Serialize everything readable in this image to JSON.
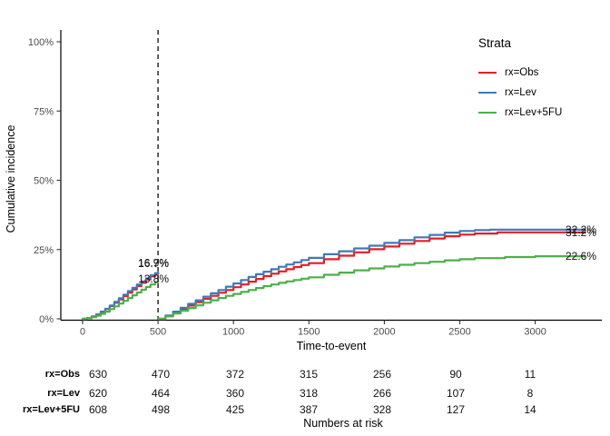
{
  "chart": {
    "y_axis": {
      "title": "Cumulative incidence",
      "tick_labels": [
        "0%",
        "25%",
        "50%",
        "75%",
        "100%"
      ],
      "tick_values": [
        0,
        25,
        50,
        75,
        100
      ]
    },
    "x_axis": {
      "title": "Time-to-event",
      "tick_labels": [
        "0",
        "500",
        "1000",
        "1500",
        "2000",
        "2500",
        "3000"
      ],
      "tick_values": [
        0,
        500,
        1000,
        1500,
        2000,
        2500,
        3000
      ]
    },
    "legend": {
      "title": "Strata"
    }
  },
  "chart_data": {
    "type": "line",
    "title": "",
    "xlabel": "Time-to-event",
    "ylabel": "Cumulative incidence",
    "xlim": [
      0,
      3450
    ],
    "ylim": [
      0,
      100
    ],
    "grid": false,
    "legend_position": "right",
    "landmark_time": 500,
    "series": [
      {
        "name": "rx=Obs",
        "color": "#E41E24",
        "segments": [
          [
            [
              0,
              0
            ],
            [
              30,
              0.3
            ],
            [
              60,
              0.9
            ],
            [
              90,
              1.6
            ],
            [
              120,
              2.6
            ],
            [
              150,
              3.5
            ],
            [
              180,
              4.6
            ],
            [
              210,
              5.8
            ],
            [
              240,
              7.0
            ],
            [
              270,
              8.2
            ],
            [
              300,
              9.4
            ],
            [
              330,
              10.6
            ],
            [
              360,
              11.8
            ],
            [
              390,
              13.0
            ],
            [
              420,
              14.2
            ],
            [
              450,
              15.3
            ],
            [
              480,
              16.2
            ],
            [
              500,
              16.7
            ]
          ],
          [
            [
              500,
              0
            ],
            [
              550,
              1.0
            ],
            [
              600,
              2.3
            ],
            [
              650,
              3.6
            ],
            [
              700,
              4.8
            ],
            [
              750,
              6.0
            ],
            [
              800,
              7.2
            ],
            [
              850,
              8.3
            ],
            [
              900,
              9.4
            ],
            [
              950,
              10.4
            ],
            [
              1000,
              11.4
            ],
            [
              1050,
              12.4
            ],
            [
              1100,
              13.4
            ],
            [
              1150,
              14.4
            ],
            [
              1200,
              15.4
            ],
            [
              1250,
              16.3
            ],
            [
              1300,
              17.1
            ],
            [
              1350,
              17.9
            ],
            [
              1400,
              18.7
            ],
            [
              1450,
              19.4
            ],
            [
              1500,
              20.1
            ],
            [
              1600,
              21.5
            ],
            [
              1700,
              22.8
            ],
            [
              1800,
              24.0
            ],
            [
              1900,
              25.1
            ],
            [
              2000,
              26.1
            ],
            [
              2100,
              27.1
            ],
            [
              2200,
              28.1
            ],
            [
              2300,
              29.0
            ],
            [
              2400,
              29.8
            ],
            [
              2500,
              30.4
            ],
            [
              2600,
              30.8
            ],
            [
              2750,
              31.2
            ],
            [
              3329,
              31.2
            ]
          ]
        ]
      },
      {
        "name": "rx=Lev",
        "color": "#4179B5",
        "segments": [
          [
            [
              0,
              0
            ],
            [
              30,
              0.2
            ],
            [
              60,
              0.8
            ],
            [
              90,
              1.5
            ],
            [
              120,
              2.5
            ],
            [
              150,
              3.6
            ],
            [
              180,
              4.8
            ],
            [
              210,
              6.1
            ],
            [
              240,
              7.4
            ],
            [
              270,
              8.7
            ],
            [
              300,
              10.0
            ],
            [
              330,
              11.2
            ],
            [
              360,
              12.4
            ],
            [
              390,
              13.5
            ],
            [
              420,
              14.6
            ],
            [
              450,
              15.7
            ],
            [
              480,
              16.5
            ],
            [
              500,
              16.9
            ]
          ],
          [
            [
              500,
              0
            ],
            [
              550,
              1.2
            ],
            [
              600,
              2.6
            ],
            [
              650,
              4.0
            ],
            [
              700,
              5.4
            ],
            [
              750,
              6.7
            ],
            [
              800,
              8.0
            ],
            [
              850,
              9.2
            ],
            [
              900,
              10.4
            ],
            [
              950,
              11.6
            ],
            [
              1000,
              12.8
            ],
            [
              1050,
              14.0
            ],
            [
              1100,
              15.1
            ],
            [
              1150,
              16.1
            ],
            [
              1200,
              17.0
            ],
            [
              1250,
              17.9
            ],
            [
              1300,
              18.8
            ],
            [
              1350,
              19.6
            ],
            [
              1400,
              20.4
            ],
            [
              1450,
              21.2
            ],
            [
              1500,
              22.0
            ],
            [
              1600,
              23.3
            ],
            [
              1700,
              24.4
            ],
            [
              1800,
              25.4
            ],
            [
              1900,
              26.4
            ],
            [
              2000,
              27.4
            ],
            [
              2100,
              28.4
            ],
            [
              2200,
              29.4
            ],
            [
              2300,
              30.3
            ],
            [
              2400,
              31.1
            ],
            [
              2500,
              31.7
            ],
            [
              2600,
              32.0
            ],
            [
              2700,
              32.2
            ],
            [
              3329,
              32.2
            ]
          ]
        ]
      },
      {
        "name": "rx=Lev+5FU",
        "color": "#4DAF4A",
        "segments": [
          [
            [
              0,
              0
            ],
            [
              30,
              0.2
            ],
            [
              60,
              0.6
            ],
            [
              90,
              1.1
            ],
            [
              120,
              1.8
            ],
            [
              150,
              2.6
            ],
            [
              180,
              3.5
            ],
            [
              210,
              4.5
            ],
            [
              240,
              5.5
            ],
            [
              270,
              6.5
            ],
            [
              300,
              7.5
            ],
            [
              330,
              8.5
            ],
            [
              360,
              9.5
            ],
            [
              390,
              10.5
            ],
            [
              420,
              11.5
            ],
            [
              450,
              12.4
            ],
            [
              480,
              13.2
            ],
            [
              500,
              13.8
            ]
          ],
          [
            [
              500,
              0
            ],
            [
              550,
              0.9
            ],
            [
              600,
              1.9
            ],
            [
              650,
              2.9
            ],
            [
              700,
              3.9
            ],
            [
              750,
              4.9
            ],
            [
              800,
              5.8
            ],
            [
              850,
              6.7
            ],
            [
              900,
              7.5
            ],
            [
              950,
              8.3
            ],
            [
              1000,
              9.0
            ],
            [
              1050,
              9.7
            ],
            [
              1100,
              10.4
            ],
            [
              1150,
              11.1
            ],
            [
              1200,
              11.8
            ],
            [
              1250,
              12.4
            ],
            [
              1300,
              13.0
            ],
            [
              1350,
              13.5
            ],
            [
              1400,
              14.0
            ],
            [
              1450,
              14.5
            ],
            [
              1500,
              15.0
            ],
            [
              1600,
              15.9
            ],
            [
              1700,
              16.7
            ],
            [
              1800,
              17.5
            ],
            [
              1900,
              18.2
            ],
            [
              2000,
              18.9
            ],
            [
              2100,
              19.5
            ],
            [
              2200,
              20.1
            ],
            [
              2300,
              20.6
            ],
            [
              2400,
              21.1
            ],
            [
              2500,
              21.5
            ],
            [
              2600,
              21.9
            ],
            [
              2800,
              22.3
            ],
            [
              3000,
              22.6
            ],
            [
              3329,
              22.6
            ]
          ]
        ]
      }
    ],
    "annotations": [
      {
        "text": "16.9%",
        "series": "rx=Lev",
        "time": 500,
        "value": 16.9,
        "side": "landmark",
        "placement": "above"
      },
      {
        "text": "16.7%",
        "series": "rx=Obs",
        "time": 500,
        "value": 16.7,
        "side": "landmark",
        "placement": "above"
      },
      {
        "text": "13.8%",
        "series": "rx=Lev+5FU",
        "time": 500,
        "value": 13.8,
        "side": "landmark",
        "placement": "on"
      },
      {
        "text": "32.2%",
        "series": "rx=Lev",
        "time": 3329,
        "value": 32.2,
        "side": "end",
        "placement": "on"
      },
      {
        "text": "31.2%",
        "series": "rx=Obs",
        "time": 3329,
        "value": 31.2,
        "side": "end",
        "placement": "on"
      },
      {
        "text": "22.6%",
        "series": "rx=Lev+5FU",
        "time": 3329,
        "value": 22.6,
        "side": "end",
        "placement": "on"
      }
    ]
  },
  "risk_table": {
    "caption": "Numbers at risk",
    "rows": [
      {
        "label": "rx=Obs",
        "values": [
          "630",
          "470",
          "372",
          "315",
          "256",
          "90",
          "11"
        ]
      },
      {
        "label": "rx=Lev",
        "values": [
          "620",
          "464",
          "360",
          "318",
          "266",
          "107",
          "8"
        ]
      },
      {
        "label": "rx=Lev+5FU",
        "values": [
          "608",
          "498",
          "425",
          "387",
          "328",
          "127",
          "14"
        ]
      }
    ]
  }
}
